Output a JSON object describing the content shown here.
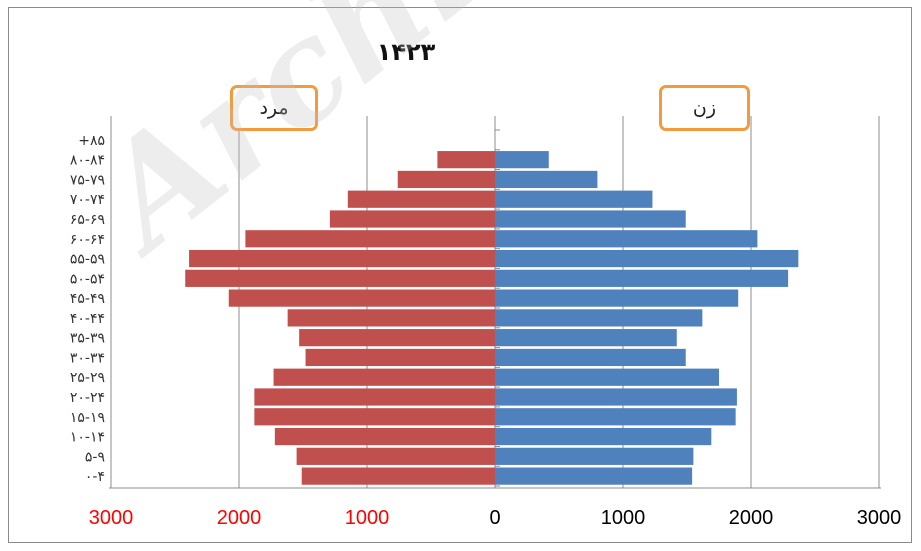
{
  "chart_data": {
    "type": "bar",
    "orientation": "horizontal-population-pyramid",
    "title": "۱۴۲۳",
    "categories": [
      "۰-۴",
      "۵-۹",
      "۱۰-۱۴",
      "۱۵-۱۹",
      "۲۰-۲۴",
      "۲۵-۲۹",
      "۳۰-۳۴",
      "۳۵-۳۹",
      "۴۰-۴۴",
      "۴۵-۴۹",
      "۵۰-۵۴",
      "۵۵-۵۹",
      "۶۰-۶۴",
      "۶۵-۶۹",
      "۷۰-۷۴",
      "۷۵-۷۹",
      "۸۰-۸۴",
      "+۸۵"
    ],
    "series": [
      {
        "name": "مرد",
        "side": "left",
        "color": "#c0504d",
        "values": [
          1510,
          1550,
          1720,
          1880,
          1880,
          1730,
          1480,
          1530,
          1620,
          2080,
          2420,
          2390,
          1950,
          1290,
          1150,
          760,
          450,
          0
        ]
      },
      {
        "name": "زن",
        "side": "right",
        "color": "#4f81bd",
        "values": [
          1540,
          1550,
          1690,
          1880,
          1890,
          1750,
          1490,
          1420,
          1620,
          1900,
          2290,
          2370,
          2050,
          1490,
          1230,
          800,
          420,
          0
        ]
      }
    ],
    "xlim": [
      -3000,
      3000
    ],
    "x_ticks": [
      -3000,
      -2000,
      -1000,
      0,
      1000,
      2000,
      3000
    ],
    "x_tick_labels": [
      "3000",
      "2000",
      "1000",
      "0",
      "1000",
      "2000",
      "3000"
    ],
    "x_tick_label_colors": {
      "negative": "#ff0000",
      "positive": "#000000"
    },
    "grid": "vertical",
    "legend": "labelled boxes above each side",
    "xlabel": "",
    "ylabel": ""
  },
  "labels": {
    "male": "مرد",
    "female": "زن"
  },
  "watermark": "Archive"
}
